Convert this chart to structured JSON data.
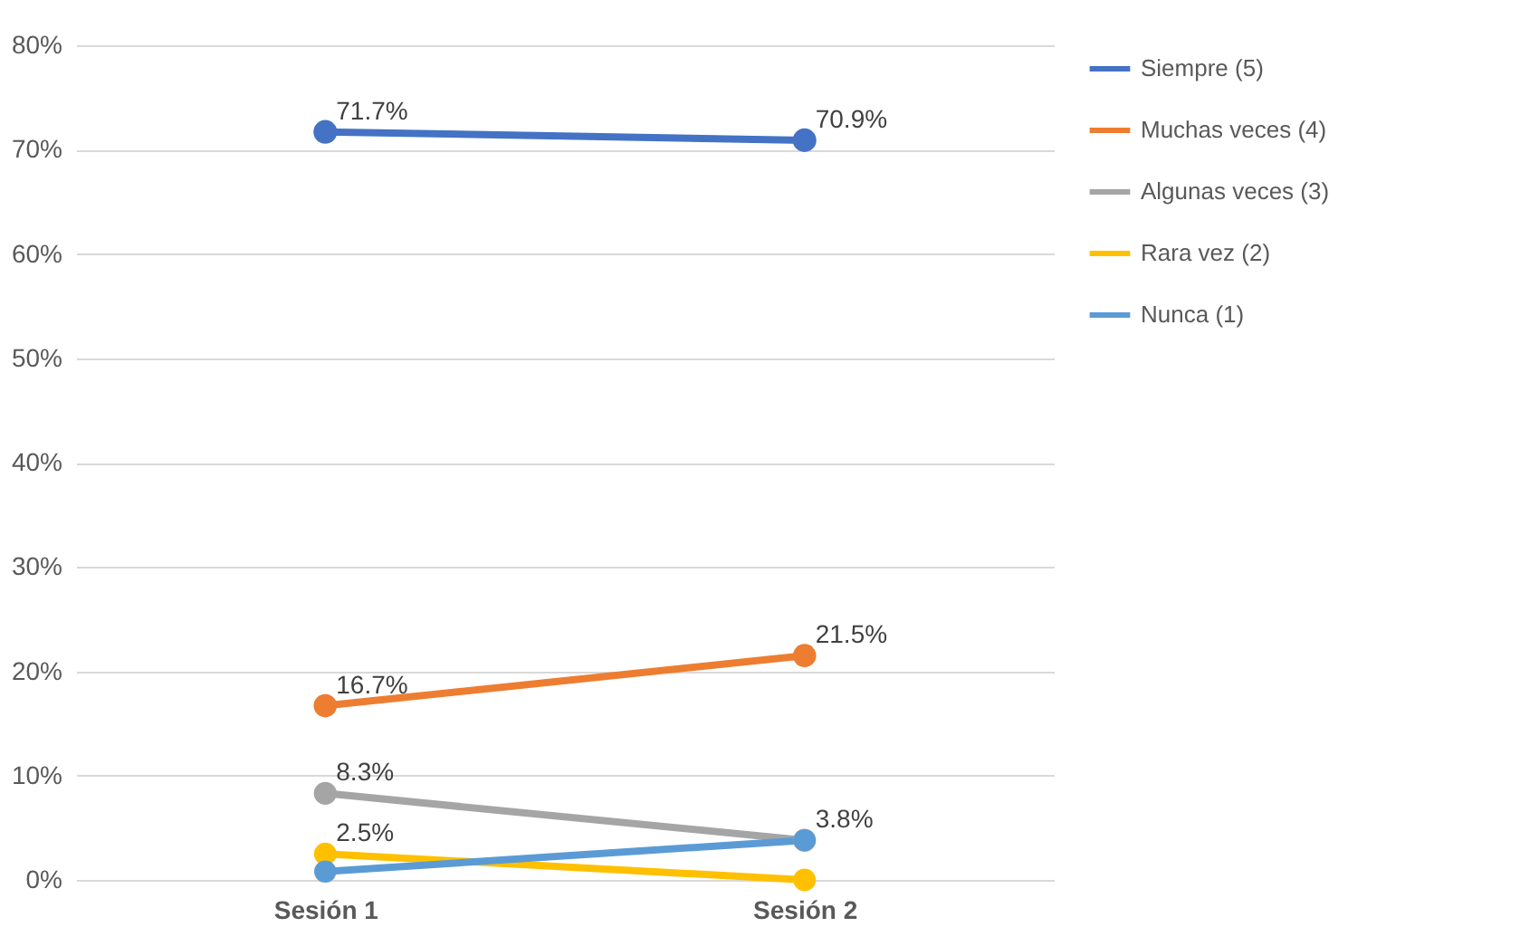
{
  "chart_data": {
    "type": "line",
    "categories": [
      "Sesión 1",
      "Sesión 2"
    ],
    "series": [
      {
        "name": "Siempre (5)",
        "color": "#4472c4",
        "values": [
          71.7,
          70.9
        ],
        "value_labels": [
          "71.7%",
          "70.9%"
        ]
      },
      {
        "name": "Muchas veces (4)",
        "color": "#ed7d31",
        "values": [
          16.7,
          21.5
        ],
        "value_labels": [
          "16.7%",
          "21.5%"
        ]
      },
      {
        "name": "Algunas veces (3)",
        "color": "#a5a5a5",
        "values": [
          8.3,
          3.8
        ],
        "value_labels": [
          "8.3%",
          null
        ]
      },
      {
        "name": "Rara vez (2)",
        "color": "#ffc000",
        "values": [
          2.5,
          0
        ],
        "value_labels": [
          "2.5%",
          null
        ]
      },
      {
        "name": "Nunca (1)",
        "color": "#5b9bd5",
        "values": [
          0.8,
          3.8
        ],
        "value_labels": [
          null,
          "3.8%"
        ]
      }
    ],
    "ylim": [
      0,
      80
    ],
    "yticks": [
      {
        "value": 0,
        "label": "0%"
      },
      {
        "value": 10,
        "label": "10%"
      },
      {
        "value": 20,
        "label": "20%"
      },
      {
        "value": 30,
        "label": "30%"
      },
      {
        "value": 40,
        "label": "40%"
      },
      {
        "value": 50,
        "label": "50%"
      },
      {
        "value": 60,
        "label": "60%"
      },
      {
        "value": 70,
        "label": "70%"
      },
      {
        "value": 80,
        "label": "80%"
      }
    ],
    "grid": "y",
    "legend": "right",
    "marker": "circle"
  }
}
